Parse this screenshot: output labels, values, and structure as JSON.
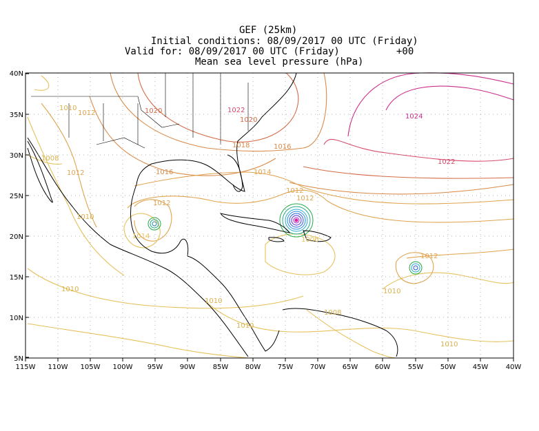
{
  "header": {
    "model": "GEF (25km)",
    "initial": "Initial conditions: 08/09/2017 00 UTC (Friday)",
    "valid": "Valid for: 08/09/2017 00 UTC (Friday)",
    "step": "+00",
    "field": "Mean sea level pressure (hPa)"
  },
  "axes": {
    "lat_labels": [
      "40N",
      "35N",
      "30N",
      "25N",
      "20N",
      "15N",
      "10N",
      "5N"
    ],
    "lon_labels": [
      "115W",
      "110W",
      "105W",
      "100W",
      "95W",
      "90W",
      "85W",
      "80W",
      "75W",
      "70W",
      "65W",
      "60W",
      "55W",
      "50W",
      "45W",
      "40W"
    ]
  },
  "contour_labels": [
    "1010",
    "1012",
    "1020",
    "1022",
    "1020",
    "1024",
    "1008",
    "1012",
    "1018",
    "1016",
    "1022",
    "1016",
    "1014",
    "1012",
    "1012",
    "1012",
    "1010",
    "1014",
    "1006",
    "1012",
    "1010",
    "1010",
    "1010",
    "1008",
    "1010",
    "1010"
  ],
  "colors": {
    "p1008": "#e6c15c",
    "p1012": "#e0a34e",
    "p1016": "#d98a48",
    "p1020": "#d46a45",
    "p1024": "#cc2c8a",
    "low_green": "#22aa44",
    "low_blue": "#2255dd",
    "low_core": "#aa22cc",
    "coast": "#000000"
  }
}
